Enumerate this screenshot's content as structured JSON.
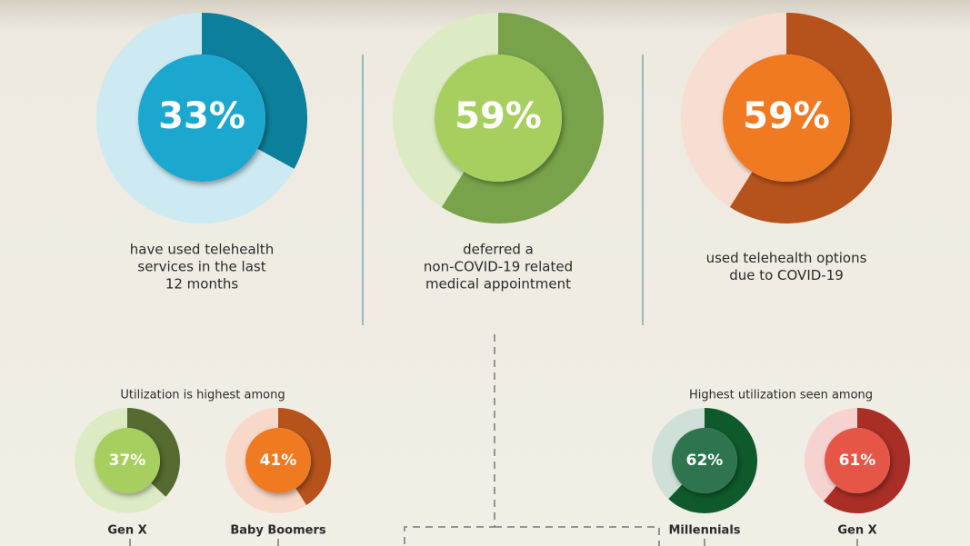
{
  "top": [
    {
      "value": 33,
      "value_label": "33%",
      "caption": [
        "have used telehealth",
        "services in the last",
        "12 months"
      ],
      "track_color": "#cde9f1",
      "ring_color": "#0b7f9c",
      "center_color": "#1ba7cf"
    },
    {
      "value": 59,
      "value_label": "59%",
      "caption": [
        "deferred a",
        "non-COVID-19 related",
        "medical appointment"
      ],
      "track_color": "#dcebc4",
      "ring_color": "#78a34a",
      "center_color": "#a6cf5e"
    },
    {
      "value": 59,
      "value_label": "59%",
      "caption": [
        "used telehealth options",
        "due to COVID-19"
      ],
      "track_color": "#f7ddd2",
      "ring_color": "#b6531c",
      "center_color": "#f07a24"
    }
  ],
  "sections": [
    {
      "heading": "Utilization is highest among",
      "donuts": [
        {
          "value": 37,
          "value_label": "37%",
          "label": "Gen X",
          "track_color": "#dcebc4",
          "ring_color": "#556b2f",
          "center_color": "#a6cf5e"
        },
        {
          "value": 41,
          "value_label": "41%",
          "label": "Baby Boomers",
          "track_color": "#f8d8c8",
          "ring_color": "#b6531c",
          "center_color": "#f07a24"
        }
      ]
    },
    {
      "heading": "Highest utilization seen among",
      "donuts": [
        {
          "value": 62,
          "value_label": "62%",
          "label": "Millennials",
          "track_color": "#cfe0d8",
          "ring_color": "#0e5a2c",
          "center_color": "#2e7550"
        },
        {
          "value": 61,
          "value_label": "61%",
          "label": "Gen X",
          "track_color": "#f6d3d0",
          "ring_color": "#a82e26",
          "center_color": "#e5574a"
        }
      ]
    }
  ]
}
